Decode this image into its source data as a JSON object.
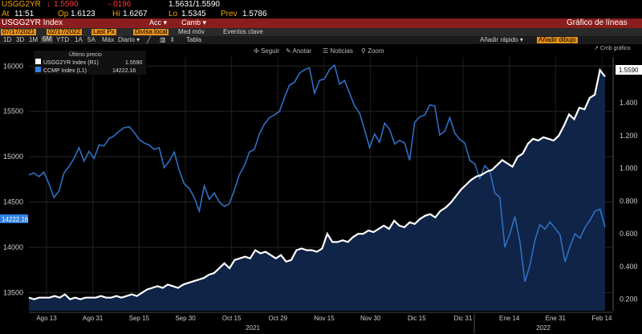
{
  "header": {
    "ticker": "USGG2YR",
    "last": "1.5590",
    "change": "-.0196",
    "bid_ask": "1.5631/1.5590",
    "at_label": "At",
    "at_time": "11:51",
    "op_label": "Op",
    "op_value": "1.6123",
    "hi_label": "Hi",
    "hi_value": "1.6267",
    "lo_label": "Lo",
    "lo_value": "1.5345",
    "prev_label": "Prev",
    "prev_value": "1.5786"
  },
  "toolbar": {
    "index_label": "USGG2YR Index",
    "acc_label": "Acc",
    "camb_label": "Camb",
    "chart_type": "Gráfico de líneas",
    "date_from": "07/17/2021",
    "date_to": "02/17/2022",
    "last_px": "Last Px",
    "divisa": "Divisa local",
    "med_mov": "Med móv",
    "eventos": "Eventos clave",
    "periods": [
      "1D",
      "3D",
      "1M",
      "6M",
      "YTD",
      "1A",
      "5A",
      "Máx",
      "Diario"
    ],
    "periods_active": "6M",
    "tabla": "Tabla",
    "add_quick": "Añadir rápido",
    "add_drawing": "Añadir dibujo",
    "seguir": "Seguir",
    "anotar": "Anotar",
    "noticias": "Noticias",
    "zoom": "Zoom",
    "cmb_grafico": "Cmb gráfico"
  },
  "legend": {
    "title": "Último precio",
    "items": [
      {
        "name": "USGG2YR Index  (R1)",
        "value": "1.5590",
        "color": "#ffffff"
      },
      {
        "name": "CCMP Index  (L1)",
        "value": "14222.16",
        "color": "#2f7fe0"
      }
    ]
  },
  "colors": {
    "white_series": "#ffffff",
    "blue_series": "#2f6fc4",
    "area_fill": "#0f2446",
    "background": "#000000",
    "grid": "#2c2c2c"
  },
  "chart_data": {
    "type": "line",
    "x_ticks": [
      "Ago 13",
      "Ago 31",
      "Sep 15",
      "Sep 30",
      "Oct 15",
      "Oct 29",
      "Nov 15",
      "Nov 30",
      "Dic 15",
      "Dic 31",
      "Ene 14",
      "Ene 31",
      "Feb 14"
    ],
    "year_labels": [
      "2021",
      "2022"
    ],
    "left_axis": {
      "ticks": [
        13500,
        14000,
        14500,
        15000,
        15500,
        16000
      ],
      "ylim": [
        13300,
        16100
      ]
    },
    "right_axis": {
      "ticks": [
        "0.200",
        "0.400",
        "0.600",
        "0.800",
        "1.000",
        "1.200",
        "1.400"
      ],
      "ylim": [
        0.13,
        1.68
      ]
    },
    "left_marker": "14222.16",
    "right_marker": "1.5590",
    "series": [
      {
        "name": "USGG2YR Index (R1)",
        "axis": "right",
        "values": [
          0.21,
          0.2,
          0.21,
          0.21,
          0.21,
          0.22,
          0.21,
          0.23,
          0.2,
          0.21,
          0.2,
          0.21,
          0.21,
          0.21,
          0.22,
          0.21,
          0.21,
          0.22,
          0.21,
          0.22,
          0.23,
          0.22,
          0.24,
          0.26,
          0.27,
          0.28,
          0.27,
          0.29,
          0.28,
          0.27,
          0.29,
          0.3,
          0.31,
          0.32,
          0.33,
          0.35,
          0.36,
          0.39,
          0.42,
          0.39,
          0.44,
          0.45,
          0.46,
          0.45,
          0.5,
          0.48,
          0.49,
          0.47,
          0.45,
          0.47,
          0.43,
          0.44,
          0.5,
          0.51,
          0.5,
          0.5,
          0.49,
          0.51,
          0.6,
          0.55,
          0.55,
          0.56,
          0.55,
          0.58,
          0.6,
          0.6,
          0.62,
          0.61,
          0.63,
          0.65,
          0.63,
          0.68,
          0.65,
          0.64,
          0.67,
          0.66,
          0.69,
          0.71,
          0.72,
          0.7,
          0.74,
          0.76,
          0.79,
          0.83,
          0.87,
          0.9,
          0.93,
          0.95,
          0.96,
          0.98,
          0.99,
          1.02,
          1.05,
          1.03,
          1.01,
          1.07,
          1.09,
          1.15,
          1.18,
          1.17,
          1.19,
          1.18,
          1.17,
          1.2,
          1.26,
          1.33,
          1.3,
          1.37,
          1.36,
          1.43,
          1.45,
          1.6,
          1.56
        ]
      },
      {
        "name": "CCMP Index (L1)",
        "axis": "left",
        "values": [
          14800,
          14820,
          14780,
          14830,
          14700,
          14550,
          14620,
          14820,
          14890,
          14980,
          15100,
          14950,
          15060,
          14980,
          15130,
          15120,
          15200,
          15230,
          15280,
          15320,
          15330,
          15270,
          15190,
          15150,
          15130,
          15080,
          15100,
          14880,
          14950,
          15050,
          14850,
          14700,
          14650,
          14550,
          14400,
          14680,
          14530,
          14600,
          14500,
          14450,
          14480,
          14630,
          14800,
          14900,
          15050,
          15080,
          15250,
          15360,
          15430,
          15460,
          15500,
          15650,
          15790,
          15820,
          15920,
          15960,
          15980,
          15700,
          15840,
          15860,
          15960,
          16010,
          15800,
          15840,
          15700,
          15560,
          15480,
          15300,
          15100,
          15250,
          15160,
          15370,
          15300,
          15140,
          15180,
          15150,
          14960,
          15380,
          15440,
          15460,
          15570,
          15560,
          15240,
          15280,
          15430,
          15260,
          15190,
          15150,
          14960,
          14920,
          14760,
          14900,
          14840,
          14600,
          14550,
          14000,
          14150,
          14340,
          14060,
          13620,
          13800,
          14080,
          14250,
          14200,
          14280,
          14210,
          14140,
          13840,
          14010,
          14150,
          14100,
          14220,
          14300,
          14400,
          14420,
          14222
        ]
      }
    ]
  }
}
